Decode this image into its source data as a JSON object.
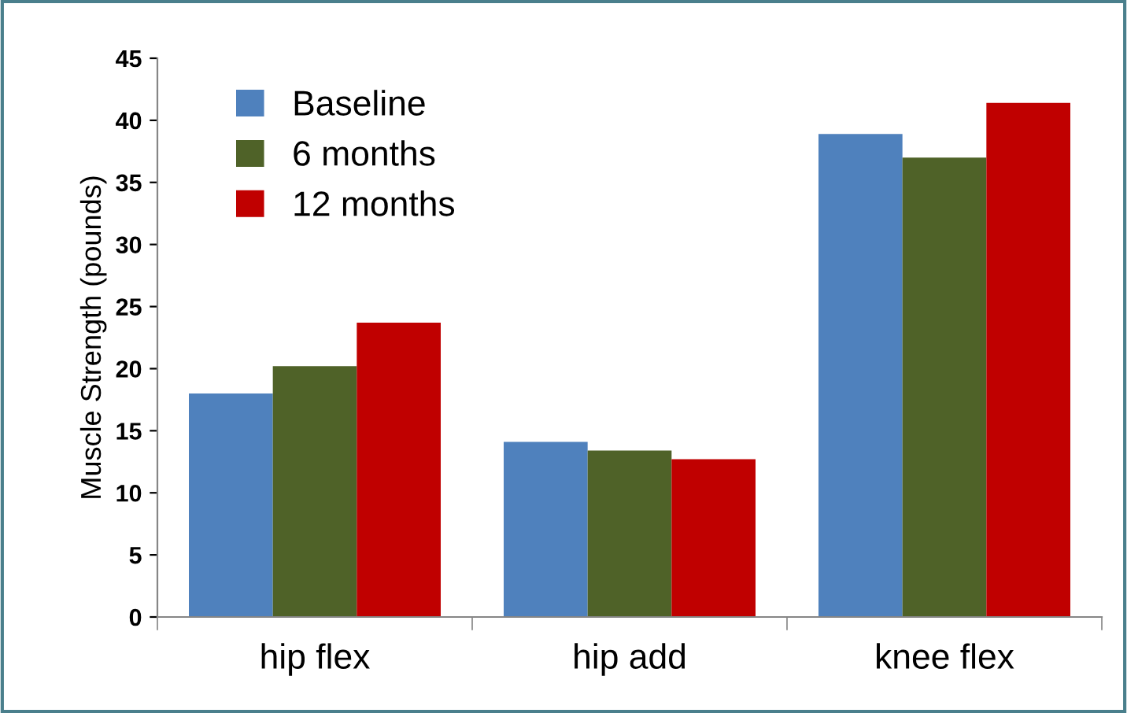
{
  "chart_data": {
    "type": "bar",
    "ylabel": "Muscle Strength (pounds)",
    "categories": [
      "hip flex",
      "hip add",
      "knee flex"
    ],
    "series": [
      {
        "name": "Baseline",
        "color": "#4f81bd",
        "values": [
          18.0,
          14.1,
          38.9
        ]
      },
      {
        "name": "6 months",
        "color": "#4f6228",
        "values": [
          20.2,
          13.4,
          37.0
        ]
      },
      {
        "name": "12 months",
        "color": "#c00000",
        "values": [
          23.7,
          12.7,
          41.4
        ]
      }
    ],
    "ylim": [
      0,
      45
    ],
    "yticks": [
      0,
      5,
      10,
      15,
      20,
      25,
      30,
      35,
      40,
      45
    ],
    "grid": false,
    "legend": "top left"
  }
}
